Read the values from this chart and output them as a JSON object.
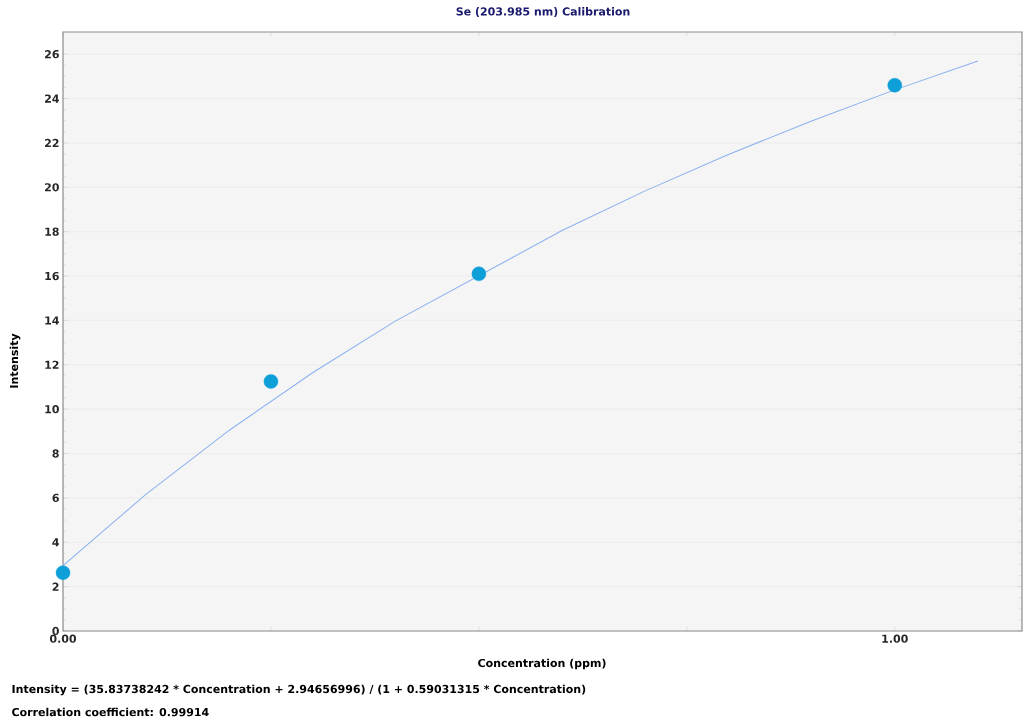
{
  "chart_data": {
    "type": "scatter",
    "title": "Se (203.985 nm) Calibration",
    "xlabel": "Concentration (ppm)",
    "ylabel": "Intensity",
    "annotations": [
      "Intensity = (35.83738242 * Concentration + 2.94656996) / (1 + 0.59031315 * Concentration)",
      "Correlation coefficient: 0.99914"
    ],
    "xlim": [
      0,
      1.153
    ],
    "ylim": [
      0,
      27
    ],
    "xticks": [
      {
        "value": 0,
        "label": "0.00"
      },
      {
        "value": 0.25,
        "label": null
      },
      {
        "value": 0.5,
        "label": null
      },
      {
        "value": 0.75,
        "label": null
      },
      {
        "value": 1,
        "label": "1.00"
      }
    ],
    "yticks": [
      0,
      2,
      4,
      6,
      8,
      10,
      12,
      14,
      16,
      18,
      20,
      22,
      24,
      26
    ],
    "grid": "y",
    "marker": "circle",
    "series": [
      {
        "color": "#0f9fd8",
        "x": [
          0,
          0.25,
          0.5,
          1.0
        ],
        "values": [
          2.63,
          11.25,
          16.1,
          24.6
        ]
      },
      {
        "type": "line",
        "color": "#8ab0f0",
        "marker": "none",
        "x": [
          0,
          0.1,
          0.2,
          0.3,
          0.4,
          0.6,
          0.7,
          0.8,
          0.9,
          1.0,
          1.1
        ],
        "values": [
          2.95,
          6.17,
          9.05,
          11.64,
          13.98,
          18.05,
          19.84,
          21.48,
          22.99,
          24.39,
          25.69
        ]
      }
    ]
  }
}
